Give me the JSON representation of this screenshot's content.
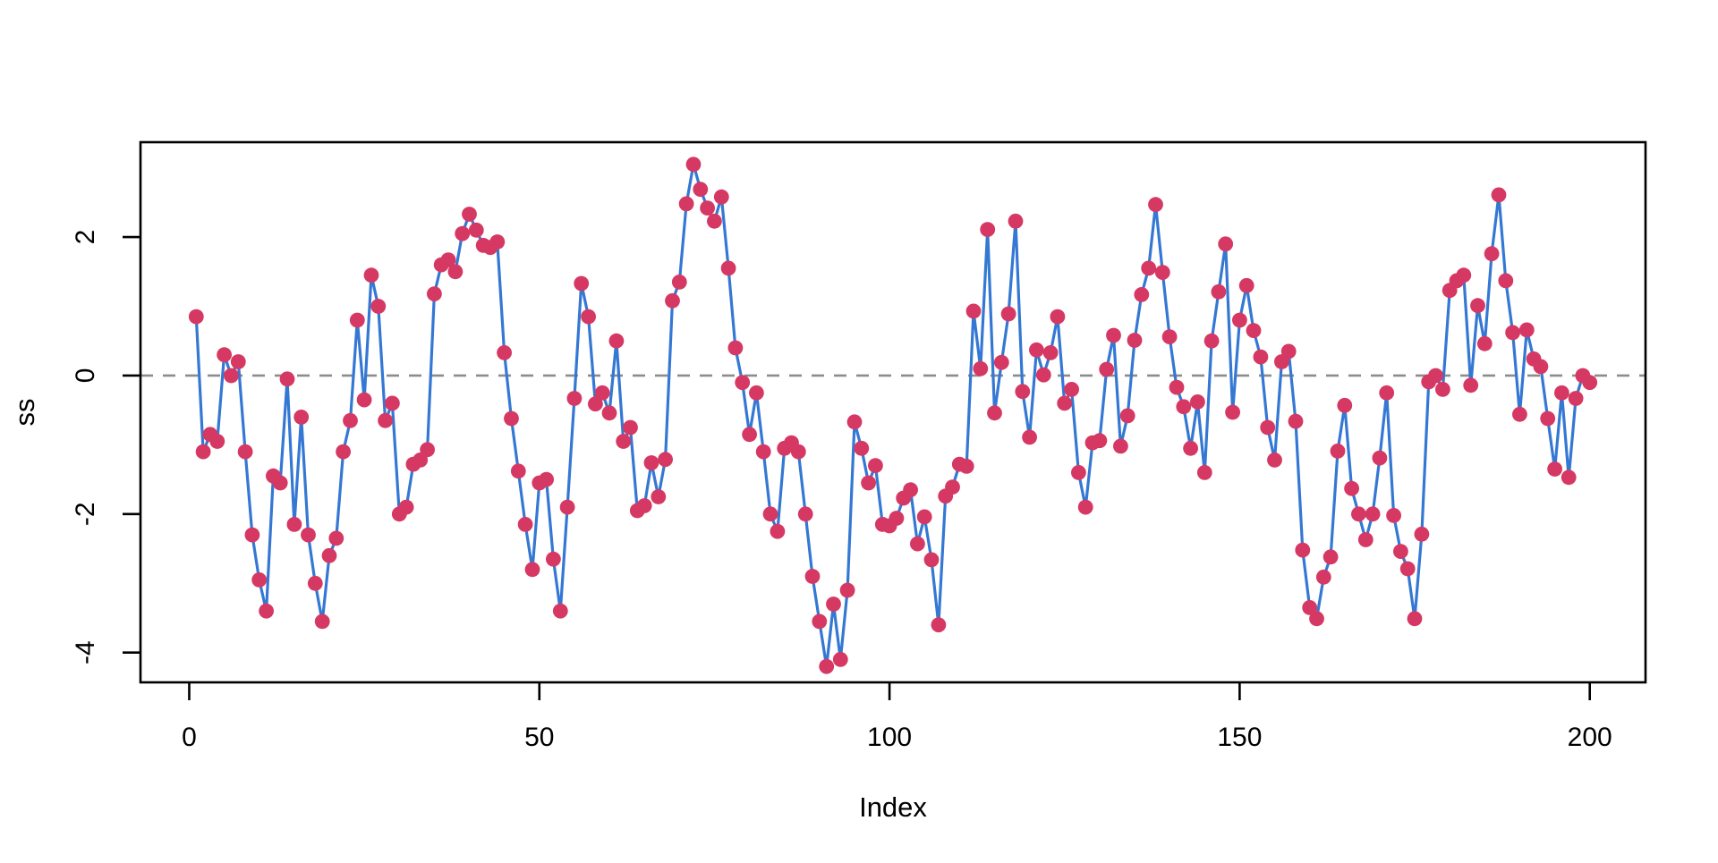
{
  "figure": {
    "background": "#ffffff",
    "frame_color": "#000000"
  },
  "chart_data": {
    "type": "line",
    "title": "",
    "xlabel": "Index",
    "ylabel": "ss",
    "legend": null,
    "grid": false,
    "x_ticks": [
      0,
      50,
      100,
      150,
      200
    ],
    "y_ticks": [
      2,
      0,
      -2,
      -4
    ],
    "x_range": [
      -6.96,
      207.96
    ],
    "y_range": [
      -4.43,
      3.37
    ],
    "zero_line": {
      "y": 0,
      "style": "dashed",
      "color": "#8c8c8c"
    },
    "series": [
      {
        "name": "ss",
        "mode": "line+markers",
        "line_color": "#3478d4",
        "marker_color": "#d63864",
        "x_start": 1,
        "values": [
          0.85,
          -1.1,
          -0.85,
          -0.95,
          0.3,
          0.0,
          0.2,
          -1.1,
          -2.3,
          -2.95,
          -3.4,
          -1.45,
          -1.55,
          -0.05,
          -2.15,
          -0.6,
          -2.3,
          -3.0,
          -3.55,
          -2.6,
          -2.35,
          -1.1,
          -0.65,
          0.8,
          -0.35,
          1.45,
          1.0,
          -0.65,
          -0.4,
          -2.0,
          -1.9,
          -1.28,
          -1.22,
          -1.07,
          1.18,
          1.6,
          1.67,
          1.5,
          2.05,
          2.33,
          2.1,
          1.88,
          1.85,
          1.93,
          0.33,
          -0.62,
          -1.38,
          -2.15,
          -2.8,
          -1.55,
          -1.5,
          -2.65,
          -3.4,
          -1.9,
          -0.33,
          1.33,
          0.85,
          -0.41,
          -0.25,
          -0.54,
          0.5,
          -0.95,
          -0.75,
          -1.95,
          -1.88,
          -1.26,
          -1.75,
          -1.21,
          1.08,
          1.35,
          2.48,
          3.05,
          2.69,
          2.42,
          2.23,
          2.58,
          1.55,
          0.4,
          -0.1,
          -0.85,
          -0.25,
          -1.1,
          -2.0,
          -2.25,
          -1.05,
          -0.97,
          -1.1,
          -2.0,
          -2.9,
          -3.55,
          -4.2,
          -3.3,
          -4.1,
          -3.1,
          -0.67,
          -1.05,
          -1.55,
          -1.3,
          -2.15,
          -2.17,
          -2.06,
          -1.77,
          -1.65,
          -2.43,
          -2.04,
          -2.66,
          -3.6,
          -1.74,
          -1.61,
          -1.28,
          -1.31,
          0.93,
          0.1,
          2.11,
          -0.54,
          0.19,
          0.89,
          2.23,
          -0.23,
          -0.89,
          0.37,
          0.01,
          0.33,
          0.85,
          -0.4,
          -0.2,
          -1.4,
          -1.9,
          -0.97,
          -0.94,
          0.09,
          0.58,
          -1.02,
          -0.58,
          0.51,
          1.17,
          1.55,
          2.47,
          1.49,
          0.56,
          -0.17,
          -0.45,
          -1.05,
          -0.38,
          -1.4,
          0.5,
          1.21,
          1.9,
          -0.53,
          0.8,
          1.3,
          0.65,
          0.27,
          -0.75,
          -1.22,
          0.2,
          0.35,
          -0.66,
          -2.52,
          -3.35,
          -3.51,
          -2.91,
          -2.62,
          -1.09,
          -0.43,
          -1.63,
          -2.0,
          -2.37,
          -2.0,
          -1.19,
          -0.25,
          -2.02,
          -2.54,
          -2.79,
          -3.51,
          -2.29,
          -0.09,
          0.0,
          -0.2,
          1.23,
          1.37,
          1.45,
          -0.14,
          1.01,
          0.46,
          1.76,
          2.61,
          1.37,
          0.62,
          -0.56,
          0.66,
          0.24,
          0.13,
          -0.62,
          -1.35,
          -0.25,
          -1.47,
          -0.33,
          0.0,
          -0.1
        ]
      }
    ]
  }
}
